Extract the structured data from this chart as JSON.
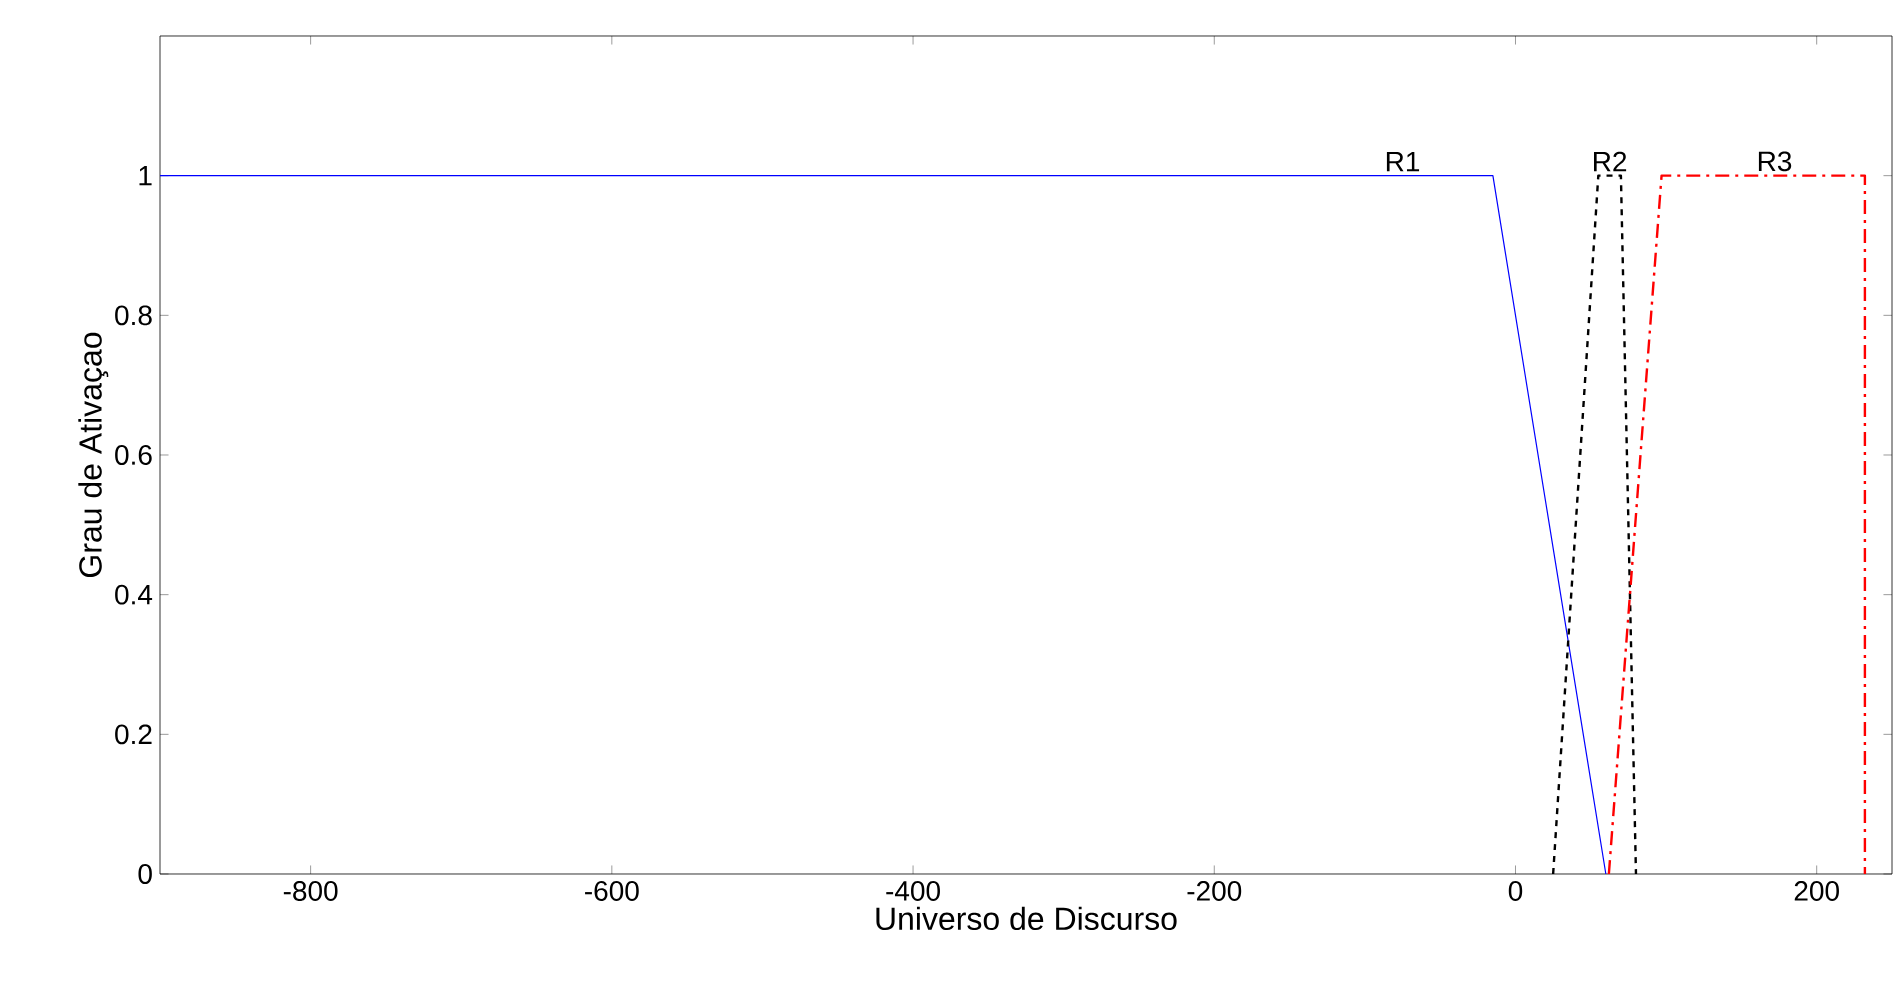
{
  "chart_data": {
    "type": "line",
    "xlabel": "Universo de Discurso",
    "ylabel": "Grau de Ativaçao",
    "series": [
      {
        "name": "R1",
        "color": "#0000ff",
        "line_style": "solid",
        "x": [
          -900,
          -15,
          60
        ],
        "values": [
          1,
          1,
          0
        ]
      },
      {
        "name": "R2",
        "color": "#000000",
        "line_style": "dashed",
        "x": [
          25,
          55,
          70,
          80
        ],
        "values": [
          0,
          1,
          1,
          0
        ]
      },
      {
        "name": "R3",
        "color": "#ff0000",
        "line_style": "dashdot",
        "x": [
          62,
          97,
          232,
          232
        ],
        "values": [
          0,
          1,
          1,
          0
        ]
      }
    ],
    "xlim": [
      -900,
      250
    ],
    "ylim": [
      0,
      1.2
    ],
    "xticks": [
      -800,
      -600,
      -400,
      -200,
      0,
      200
    ],
    "yticks": [
      0,
      0.2,
      0.4,
      0.6,
      0.8,
      1
    ],
    "grid": false,
    "marker": "none"
  }
}
